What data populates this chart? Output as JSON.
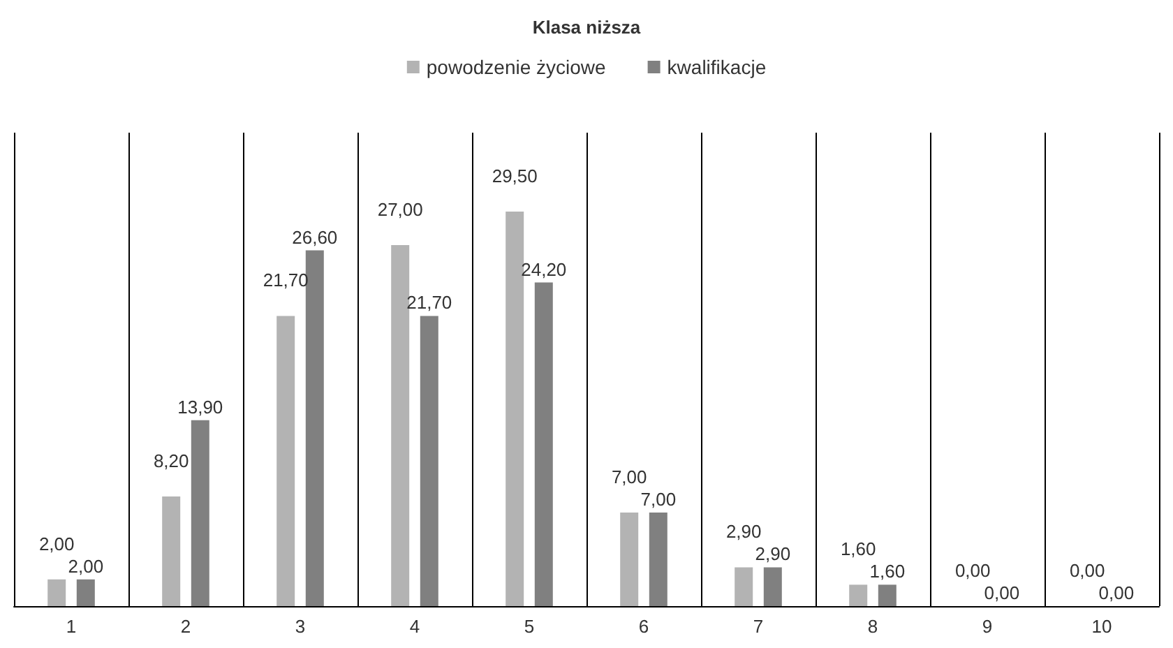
{
  "chart_data": {
    "type": "bar",
    "title": "Klasa niższa",
    "categories": [
      "1",
      "2",
      "3",
      "4",
      "5",
      "6",
      "7",
      "8",
      "9",
      "10"
    ],
    "series": [
      {
        "name": "powodzenie życiowe",
        "color": "#b3b3b3",
        "values": [
          2,
          8.2,
          21.7,
          27,
          29.5,
          7,
          2.9,
          1.6,
          0,
          0
        ],
        "value_labels": [
          "2,00",
          "8,20",
          "21,70",
          "27,00",
          "29,50",
          "7,00",
          "2,90",
          "1,60",
          "0,00",
          "0,00"
        ]
      },
      {
        "name": "kwalifikacje",
        "color": "#808080",
        "values": [
          2,
          13.9,
          26.6,
          21.7,
          24.2,
          7,
          2.9,
          1.6,
          0,
          0
        ],
        "value_labels": [
          "2,00",
          "13,90",
          "26,60",
          "21,70",
          "24,20",
          "7,00",
          "2,90",
          "1,60",
          "0,00",
          "0,00"
        ]
      }
    ],
    "grid": "x",
    "legend": "top",
    "tick_labels": "x"
  }
}
